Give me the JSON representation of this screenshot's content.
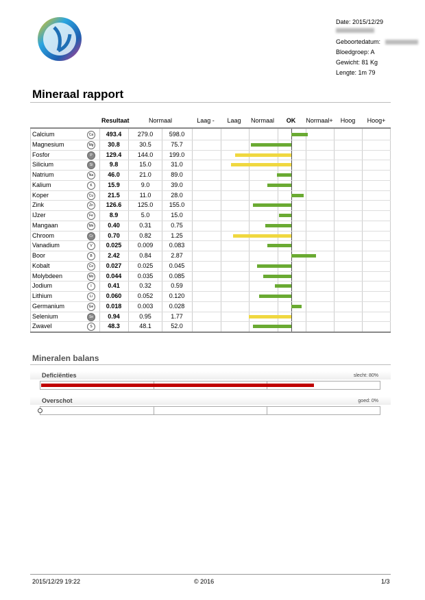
{
  "header": {
    "date": "Date: 2015/12/29",
    "birth": "Geboortedatum: ",
    "blood": "Bloedgroep: A",
    "weight": "Gewicht: 81 Kg",
    "height": "Lengte: 1m 79"
  },
  "title": "Mineraal rapport",
  "table": {
    "result_head": "Resultaat",
    "normal_head": "Normaal",
    "scale": [
      "Laag -",
      "Laag",
      "Normaal",
      "OK",
      "Normaal+",
      "Hoog",
      "Hoog+"
    ],
    "ok_color": "#6aaa32",
    "warn_color": "#f0d840",
    "rows": [
      {
        "name": "Calcium",
        "symbol": "Ca",
        "result": "493.4",
        "min": "279.0",
        "max": "598.0",
        "bar": 0.58,
        "warn": false,
        "filled": false
      },
      {
        "name": "Magnesium",
        "symbol": "Mg",
        "result": "30.8",
        "min": "30.5",
        "max": "75.7",
        "bar": -1.42,
        "warn": false,
        "filled": false
      },
      {
        "name": "Fosfor",
        "symbol": "P",
        "result": "129.4",
        "min": "144.0",
        "max": "199.0",
        "bar": -1.98,
        "warn": true,
        "filled": true
      },
      {
        "name": "Silicium",
        "symbol": "Si",
        "result": "9.8",
        "min": "15.0",
        "max": "31.0",
        "bar": -2.12,
        "warn": true,
        "filled": true
      },
      {
        "name": "Natrium",
        "symbol": "Na",
        "result": "46.0",
        "min": "21.0",
        "max": "89.0",
        "bar": -0.5,
        "warn": false,
        "filled": false
      },
      {
        "name": "Kalium",
        "symbol": "K",
        "result": "15.9",
        "min": "9.0",
        "max": "39.0",
        "bar": -0.84,
        "warn": false,
        "filled": false
      },
      {
        "name": "Koper",
        "symbol": "Cu",
        "result": "21.5",
        "min": "11.0",
        "max": "28.0",
        "bar": 0.43,
        "warn": false,
        "filled": false
      },
      {
        "name": "Zink",
        "symbol": "Zn",
        "result": "126.6",
        "min": "125.0",
        "max": "155.0",
        "bar": -1.35,
        "warn": false,
        "filled": false
      },
      {
        "name": "IJzer",
        "symbol": "Fe",
        "result": "8.9",
        "min": "5.0",
        "max": "15.0",
        "bar": -0.43,
        "warn": false,
        "filled": false
      },
      {
        "name": "Mangaan",
        "symbol": "Mn",
        "result": "0.40",
        "min": "0.31",
        "max": "0.75",
        "bar": -0.92,
        "warn": false,
        "filled": false
      },
      {
        "name": "Chroom",
        "symbol": "Cr",
        "result": "0.70",
        "min": "0.82",
        "max": "1.25",
        "bar": -2.05,
        "warn": true,
        "filled": true
      },
      {
        "name": "Vanadium",
        "symbol": "V",
        "result": "0.025",
        "min": "0.009",
        "max": "0.083",
        "bar": -0.84,
        "warn": false,
        "filled": false
      },
      {
        "name": "Boor",
        "symbol": "B",
        "result": "2.42",
        "min": "0.84",
        "max": "2.87",
        "bar": 0.87,
        "warn": false,
        "filled": false
      },
      {
        "name": "Kobalt",
        "symbol": "Co",
        "result": "0.027",
        "min": "0.025",
        "max": "0.045",
        "bar": -1.2,
        "warn": false,
        "filled": false
      },
      {
        "name": "Molybdeen",
        "symbol": "Mo",
        "result": "0.044",
        "min": "0.035",
        "max": "0.085",
        "bar": -0.99,
        "warn": false,
        "filled": false
      },
      {
        "name": "Jodium",
        "symbol": "I",
        "result": "0.41",
        "min": "0.32",
        "max": "0.59",
        "bar": -0.58,
        "warn": false,
        "filled": false
      },
      {
        "name": "Lithium",
        "symbol": "Li",
        "result": "0.060",
        "min": "0.052",
        "max": "0.120",
        "bar": -1.13,
        "warn": false,
        "filled": false
      },
      {
        "name": "Germanium",
        "symbol": "Ge",
        "result": "0.018",
        "min": "0.003",
        "max": "0.028",
        "bar": 0.36,
        "warn": false,
        "filled": false
      },
      {
        "name": "Selenium",
        "symbol": "Se",
        "result": "0.94",
        "min": "0.95",
        "max": "1.77",
        "bar": -1.49,
        "warn": true,
        "filled": true
      },
      {
        "name": "Zwavel",
        "symbol": "S",
        "result": "48.3",
        "min": "48.1",
        "max": "52.0",
        "bar": -1.35,
        "warn": false,
        "filled": false
      }
    ]
  },
  "balance": {
    "title": "Mineralen balans",
    "color": "#c00000",
    "items": [
      {
        "name": "Deficiënties",
        "value": 80,
        "label": "slecht: 80%"
      },
      {
        "name": "Overschot",
        "value": 0,
        "label": "goed: 0%"
      }
    ]
  },
  "footer": {
    "datetime": "2015/12/29 19:22",
    "copyright": "© 2016",
    "page": "1/3"
  }
}
